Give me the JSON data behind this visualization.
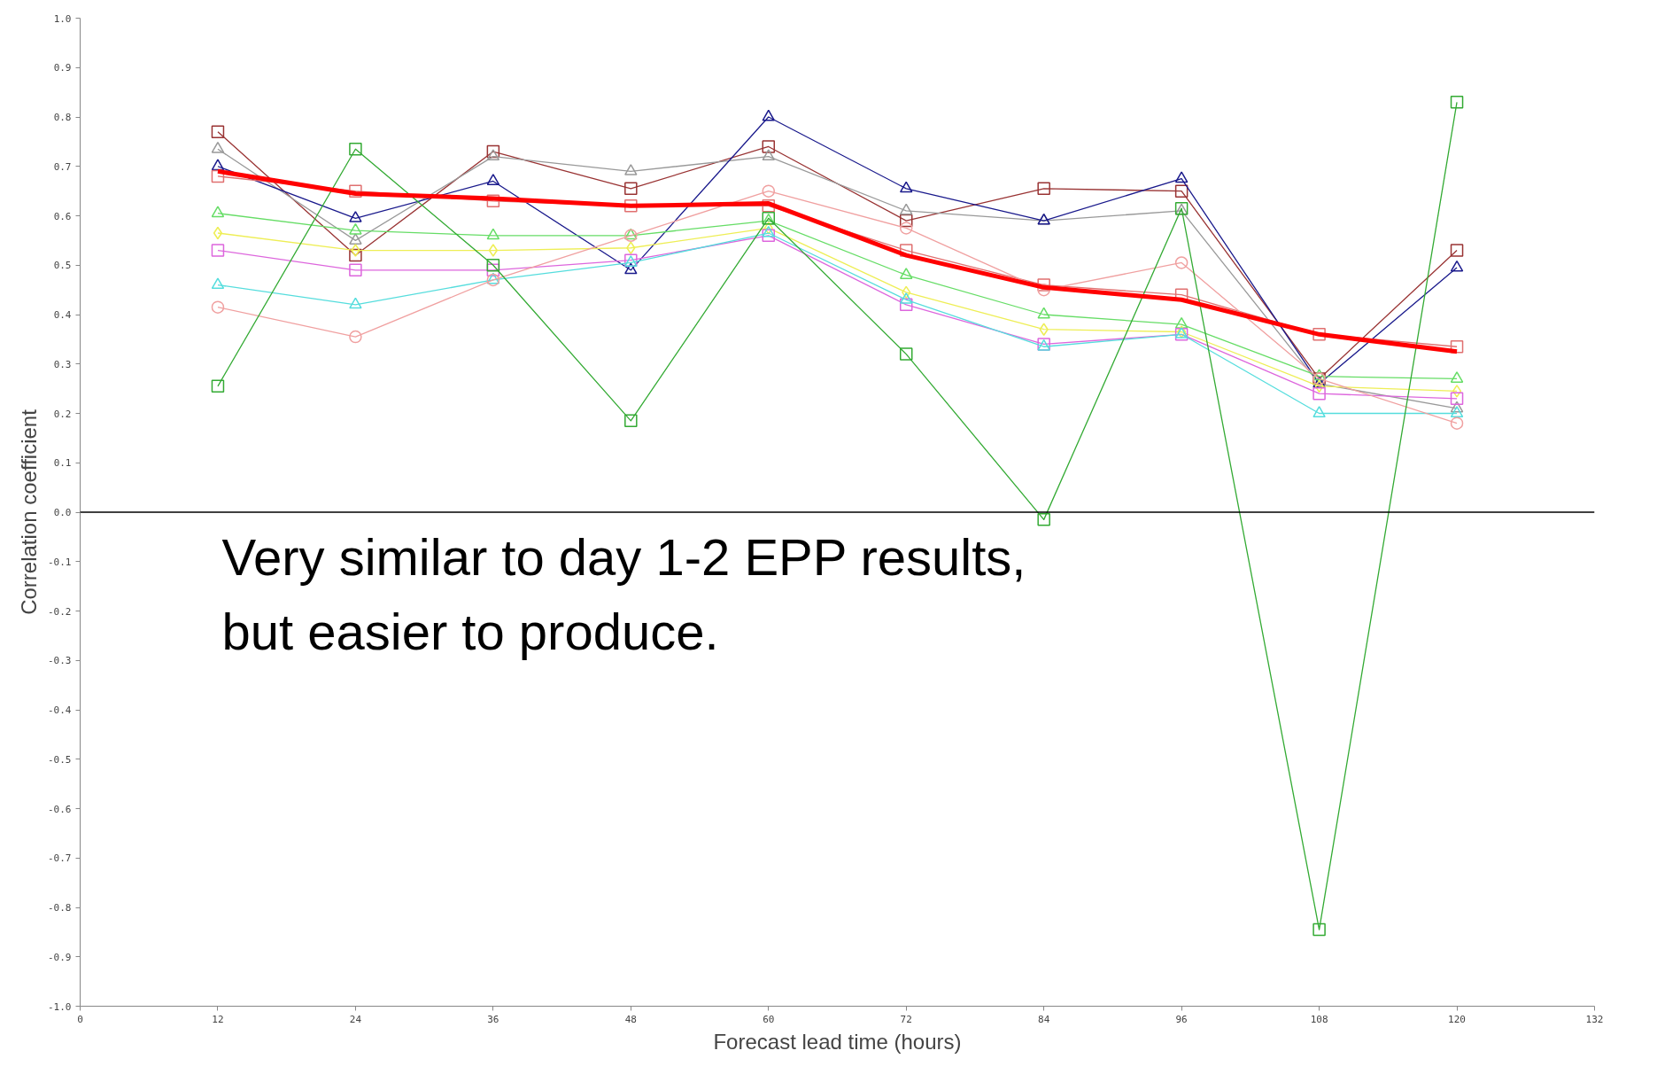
{
  "chart_data": {
    "type": "line",
    "xlabel": "Forecast lead time (hours)",
    "ylabel": "Correlation coefficient",
    "x": [
      12,
      24,
      36,
      48,
      60,
      72,
      84,
      96,
      108,
      120
    ],
    "series": [
      {
        "color": "#993333",
        "marker": "square",
        "values": [
          0.77,
          0.52,
          0.73,
          0.655,
          0.74,
          0.59,
          0.655,
          0.65,
          0.27,
          0.53
        ]
      },
      {
        "color": "#999999",
        "marker": "triangle",
        "values": [
          0.735,
          0.55,
          0.72,
          0.69,
          0.72,
          0.61,
          0.59,
          0.61,
          0.26,
          0.21
        ]
      },
      {
        "color": "#1a1a8c",
        "marker": "triangle",
        "values": [
          0.7,
          0.595,
          0.67,
          0.49,
          0.8,
          0.655,
          0.59,
          0.675,
          0.26,
          0.495
        ]
      },
      {
        "color": "#e07070",
        "marker": "square",
        "values": [
          0.68,
          0.65,
          0.63,
          0.62,
          0.62,
          0.53,
          0.46,
          0.44,
          0.36,
          0.335
        ]
      },
      {
        "color": "#66dd66",
        "marker": "triangle",
        "values": [
          0.605,
          0.57,
          0.56,
          0.56,
          0.59,
          0.48,
          0.4,
          0.38,
          0.275,
          0.27
        ]
      },
      {
        "color": "#eeee55",
        "marker": "diamond",
        "values": [
          0.565,
          0.53,
          0.53,
          0.535,
          0.575,
          0.445,
          0.37,
          0.365,
          0.255,
          0.245
        ]
      },
      {
        "color": "#dd66dd",
        "marker": "square",
        "values": [
          0.53,
          0.49,
          0.49,
          0.51,
          0.56,
          0.42,
          0.34,
          0.36,
          0.24,
          0.23
        ]
      },
      {
        "color": "#55dddd",
        "marker": "triangle",
        "values": [
          0.46,
          0.42,
          0.47,
          0.505,
          0.565,
          0.43,
          0.335,
          0.36,
          0.2,
          0.2
        ]
      },
      {
        "color": "#f0a0a0",
        "marker": "circle",
        "values": [
          0.415,
          0.355,
          0.47,
          0.56,
          0.65,
          0.575,
          0.45,
          0.505,
          0.27,
          0.18
        ]
      },
      {
        "color": "#33aa33",
        "marker": "square",
        "values": [
          0.255,
          0.735,
          0.5,
          0.185,
          0.595,
          0.32,
          -0.015,
          0.615,
          -0.845,
          0.83
        ]
      },
      {
        "color": "#ff0000",
        "marker": "none",
        "values": [
          0.69,
          0.645,
          0.635,
          0.62,
          0.625,
          0.52,
          0.455,
          0.43,
          0.36,
          0.325
        ]
      }
    ],
    "xlim": [
      0,
      132
    ],
    "xticks": [
      0,
      12,
      24,
      36,
      48,
      60,
      72,
      84,
      96,
      108,
      120,
      132
    ],
    "ylim": [
      -1,
      1
    ],
    "yticks": [
      {
        "value": -1,
        "label": "-1.0"
      },
      {
        "value": -0.9,
        "label": "-0.9"
      },
      {
        "value": -0.8,
        "label": "-0.8"
      },
      {
        "value": -0.7,
        "label": "-0.7"
      },
      {
        "value": -0.6,
        "label": "-0.6"
      },
      {
        "value": -0.5,
        "label": "-0.5"
      },
      {
        "value": -0.4,
        "label": "-0.4"
      },
      {
        "value": -0.3,
        "label": "-0.3"
      },
      {
        "value": -0.2,
        "label": "-0.2"
      },
      {
        "value": -0.1,
        "label": "-0.1"
      },
      {
        "value": 0,
        "label": "0.0"
      },
      {
        "value": 0.1,
        "label": "0.1"
      },
      {
        "value": 0.2,
        "label": "0.2"
      },
      {
        "value": 0.3,
        "label": "0.3"
      },
      {
        "value": 0.4,
        "label": "0.4"
      },
      {
        "value": 0.5,
        "label": "0.5"
      },
      {
        "value": 0.6,
        "label": "0.6"
      },
      {
        "value": 0.7,
        "label": "0.7"
      },
      {
        "value": 0.8,
        "label": "0.8"
      },
      {
        "value": 0.9,
        "label": "0.9"
      },
      {
        "value": 1,
        "label": "1.0"
      }
    ],
    "ref_lines": [
      {
        "axis": "y",
        "value": 0,
        "color": "#000000"
      }
    ],
    "annotations": [
      "Very similar to day 1-2 EPP results,\nbut easier to produce."
    ],
    "grid": false
  }
}
